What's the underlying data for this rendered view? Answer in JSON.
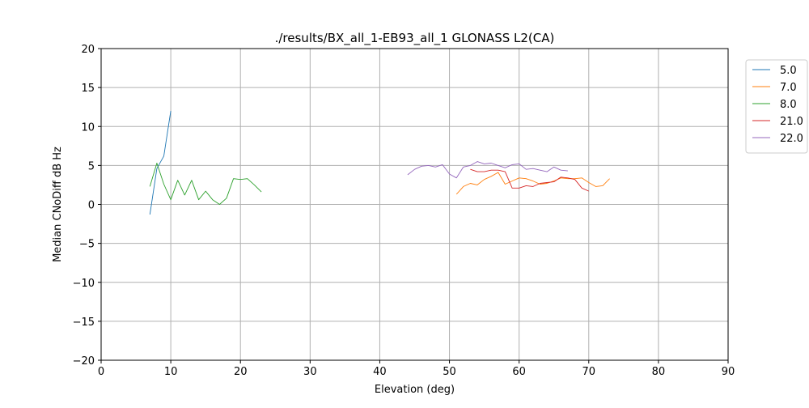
{
  "chart_data": {
    "type": "line",
    "title": "./results/BX_all_1-EB93_all_1 GLONASS L2(CA)",
    "xlabel": "Elevation (deg)",
    "ylabel": "Median CNoDiff dB Hz",
    "xlim": [
      0,
      90
    ],
    "ylim": [
      -20,
      20
    ],
    "xticks": [
      0,
      10,
      20,
      30,
      40,
      50,
      60,
      70,
      80,
      90
    ],
    "yticks": [
      -20,
      -15,
      -10,
      -5,
      0,
      5,
      10,
      15,
      20
    ],
    "grid": true,
    "legend_position": "outside-top-right",
    "series": [
      {
        "name": "5.0",
        "color": "#1f77b4",
        "x": [
          7,
          8,
          9,
          10
        ],
        "y": [
          -1.3,
          4.6,
          6.2,
          12.0
        ]
      },
      {
        "name": "7.0",
        "color": "#ff7f0e",
        "x": [
          51,
          52,
          53,
          54,
          55,
          56,
          57,
          58,
          59,
          60,
          61,
          62,
          63,
          64,
          65,
          66,
          67,
          68,
          69,
          70,
          71,
          72,
          73
        ],
        "y": [
          1.3,
          2.3,
          2.7,
          2.5,
          3.2,
          3.6,
          4.1,
          2.6,
          3.0,
          3.4,
          3.3,
          3.0,
          2.6,
          2.7,
          3.0,
          3.4,
          3.3,
          3.3,
          3.4,
          2.8,
          2.3,
          2.4,
          3.3
        ]
      },
      {
        "name": "8.0",
        "color": "#2ca02c",
        "x": [
          7,
          8,
          9,
          10,
          11,
          12,
          13,
          14,
          15,
          16,
          17,
          18,
          19,
          20,
          21,
          22,
          23
        ],
        "y": [
          2.3,
          5.3,
          2.6,
          0.6,
          3.1,
          1.2,
          3.1,
          0.6,
          1.7,
          0.6,
          0.0,
          0.8,
          3.3,
          3.2,
          3.3,
          2.5,
          1.6
        ]
      },
      {
        "name": "21.0",
        "color": "#d62728",
        "x": [
          53,
          54,
          55,
          56,
          57,
          58,
          59,
          60,
          61,
          62,
          63,
          64,
          65,
          66,
          67,
          68,
          69,
          70
        ],
        "y": [
          4.5,
          4.2,
          4.2,
          4.4,
          4.4,
          4.2,
          2.1,
          2.1,
          2.4,
          2.3,
          2.7,
          2.8,
          2.9,
          3.5,
          3.4,
          3.2,
          2.1,
          1.7
        ]
      },
      {
        "name": "22.0",
        "color": "#9467bd",
        "x": [
          44,
          45,
          46,
          47,
          48,
          49,
          50,
          51,
          52,
          53,
          54,
          55,
          56,
          57,
          58,
          59,
          60,
          61,
          62,
          63,
          64,
          65,
          66,
          67
        ],
        "y": [
          3.8,
          4.5,
          4.9,
          5.0,
          4.8,
          5.1,
          3.9,
          3.4,
          4.8,
          5.0,
          5.5,
          5.2,
          5.3,
          5.0,
          4.7,
          5.1,
          5.2,
          4.5,
          4.6,
          4.4,
          4.2,
          4.8,
          4.4,
          4.3
        ]
      }
    ]
  }
}
